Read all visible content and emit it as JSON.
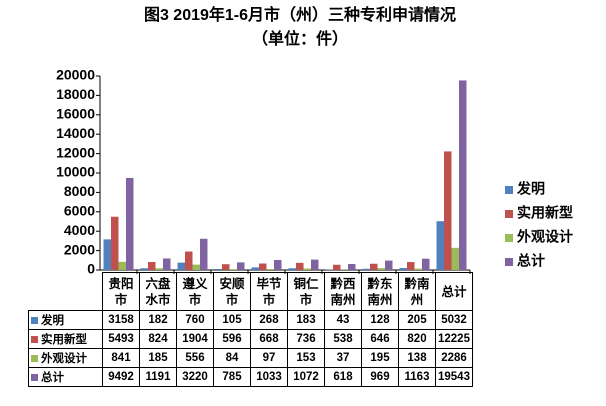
{
  "chart_data": {
    "type": "bar",
    "title": "图3 2019年1-6月市（州）三种专利申请情况",
    "subtitle": "（单位：件）",
    "categories": [
      "贵阳市",
      "六盘水市",
      "遵义市",
      "安顺市",
      "毕节市",
      "铜仁市",
      "黔西南州",
      "黔东南州",
      "黔南州",
      "总计"
    ],
    "series": [
      {
        "name": "发明",
        "color": "#4f81bd",
        "values": [
          3158,
          182,
          760,
          105,
          268,
          183,
          43,
          128,
          205,
          5032
        ]
      },
      {
        "name": "实用新型",
        "color": "#c0504d",
        "values": [
          5493,
          824,
          1904,
          596,
          668,
          736,
          538,
          646,
          820,
          12225
        ]
      },
      {
        "name": "外观设计",
        "color": "#9bbb59",
        "values": [
          841,
          185,
          556,
          84,
          97,
          153,
          37,
          195,
          138,
          2286
        ]
      },
      {
        "name": "总计",
        "color": "#8064a2",
        "values": [
          9492,
          1191,
          3220,
          785,
          1033,
          1072,
          618,
          969,
          1163,
          19543
        ]
      }
    ],
    "ylim": [
      0,
      20000
    ],
    "yticks": [
      0,
      2000,
      4000,
      6000,
      8000,
      10000,
      12000,
      14000,
      16000,
      18000,
      20000
    ],
    "legend": "right"
  }
}
